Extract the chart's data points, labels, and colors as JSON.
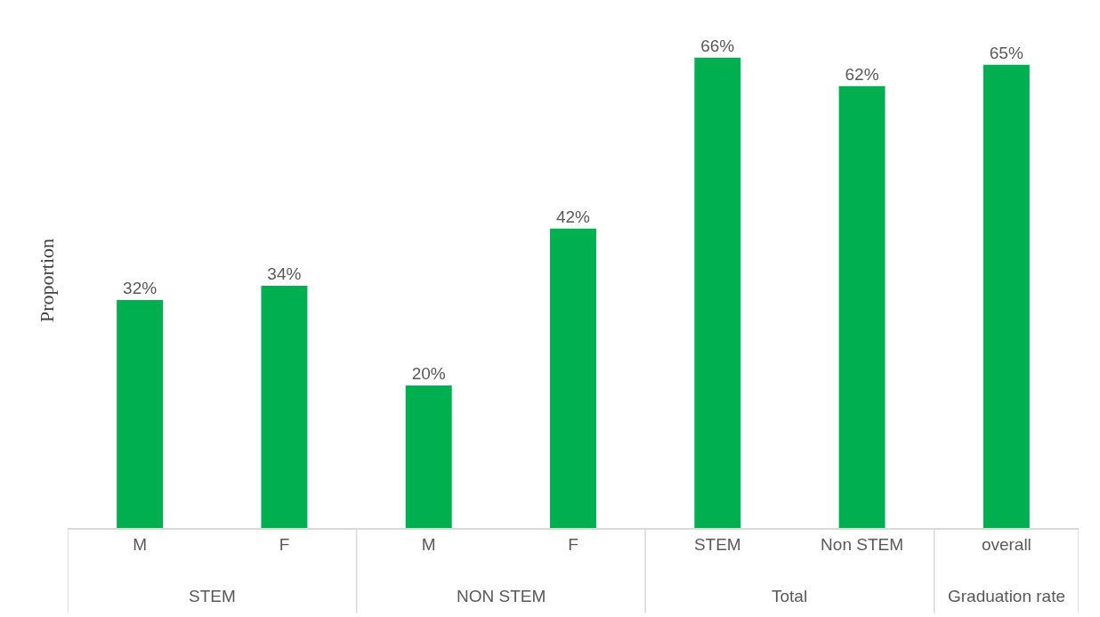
{
  "chart_data": {
    "type": "bar",
    "ylabel": "Proportion",
    "categories": [
      "M",
      "F",
      "M",
      "F",
      "STEM",
      "Non STEM",
      "overall"
    ],
    "values": [
      32,
      34,
      20,
      42,
      66,
      62,
      65
    ],
    "value_labels": [
      "32%",
      "34%",
      "20%",
      "42%",
      "66%",
      "62%",
      "65%"
    ],
    "color": "#00b050",
    "grid": false,
    "legend": false,
    "annotations": [
      "STEM",
      "NON STEM",
      "Total",
      "Graduation rate"
    ]
  }
}
